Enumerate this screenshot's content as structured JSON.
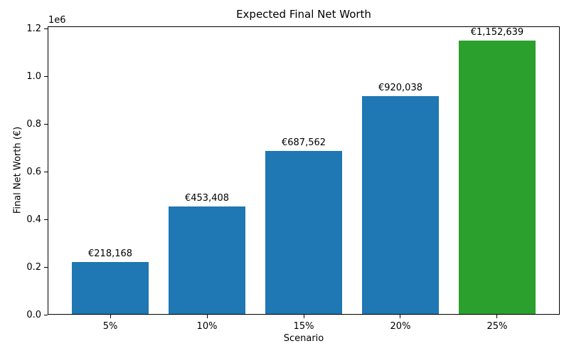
{
  "chart_data": {
    "type": "bar",
    "title": "Expected Final Net Worth",
    "xlabel": "Scenario",
    "ylabel": "Final Net Worth (€)",
    "y_offset_text": "1e6",
    "categories": [
      "5%",
      "10%",
      "15%",
      "20%",
      "25%"
    ],
    "values": [
      218168,
      453408,
      687562,
      920038,
      1152639
    ],
    "bar_labels": [
      "€218,168",
      "€453,408",
      "€687,562",
      "€920,038",
      "€1,152,639"
    ],
    "bar_colors": [
      "#1f77b4",
      "#1f77b4",
      "#1f77b4",
      "#1f77b4",
      "#2ca02c"
    ],
    "ylim": [
      0,
      1210271
    ],
    "yticks": [
      0,
      200000,
      400000,
      600000,
      800000,
      1000000,
      1200000
    ],
    "ytick_labels": [
      "0.0",
      "0.2",
      "0.4",
      "0.6",
      "0.8",
      "1.0",
      "1.2"
    ],
    "grid": false,
    "legend": false,
    "background_color": "#ffffff",
    "text_color": "#000000"
  }
}
